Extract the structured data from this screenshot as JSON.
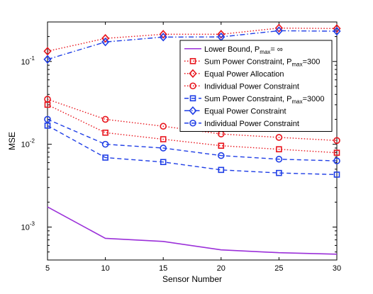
{
  "chart_data": {
    "type": "line",
    "xlabel": "Sensor Number",
    "ylabel": "MSE",
    "xscale": "linear",
    "yscale": "log",
    "xlim": [
      5,
      30
    ],
    "ylim": [
      0.0004,
      0.3
    ],
    "grid": false,
    "legend_position": "top-right",
    "x": [
      5,
      10,
      15,
      20,
      25,
      30
    ],
    "x_ticks": [
      5,
      10,
      15,
      20,
      25,
      30
    ],
    "y_ticks": [
      {
        "value": 0.001,
        "base": "10",
        "exp": "-3"
      },
      {
        "value": 0.01,
        "base": "10",
        "exp": "-2"
      },
      {
        "value": 0.1,
        "base": "10",
        "exp": "-1"
      }
    ],
    "series": [
      {
        "name": "Lower Bound, P",
        "sub": "max",
        "suffix": "= ∞",
        "color": "#9b30d9",
        "dash": "solid",
        "marker": "none",
        "values": [
          0.00175,
          0.00073,
          0.00067,
          0.00053,
          0.00049,
          0.00047
        ]
      },
      {
        "name": "Sum Power Constraint, P",
        "sub": "max",
        "suffix": "=300",
        "color": "#e8141c",
        "dash": "dotted",
        "marker": "square",
        "values": [
          0.03,
          0.0138,
          0.0115,
          0.0096,
          0.0087,
          0.0079
        ]
      },
      {
        "name": "Equal Power Allocation",
        "sub": "",
        "suffix": "",
        "color": "#e8141c",
        "dash": "dotted",
        "marker": "diamond",
        "values": [
          0.133,
          0.19,
          0.213,
          0.213,
          0.253,
          0.25
        ]
      },
      {
        "name": "Individual Power Constraint",
        "sub": "",
        "suffix": "",
        "color": "#e8141c",
        "dash": "dotted",
        "marker": "circle",
        "values": [
          0.035,
          0.02,
          0.0165,
          0.0133,
          0.0121,
          0.0111
        ]
      },
      {
        "name": "Sum Power Constraint, P",
        "sub": "max",
        "suffix": "=3000",
        "color": "#1f3ee6",
        "dash": "dashed",
        "marker": "square",
        "values": [
          0.0168,
          0.0069,
          0.0061,
          0.0049,
          0.0045,
          0.0043
        ]
      },
      {
        "name": "Equal Power Constraint",
        "sub": "",
        "suffix": "",
        "color": "#1f3ee6",
        "dash": "dashdot",
        "marker": "diamond",
        "values": [
          0.106,
          0.172,
          0.197,
          0.198,
          0.235,
          0.232
        ]
      },
      {
        "name": "Individual Power Constraint",
        "sub": "",
        "suffix": "",
        "color": "#1f3ee6",
        "dash": "dashed",
        "marker": "circle",
        "values": [
          0.02,
          0.01,
          0.009,
          0.0073,
          0.0066,
          0.0063
        ]
      }
    ]
  }
}
